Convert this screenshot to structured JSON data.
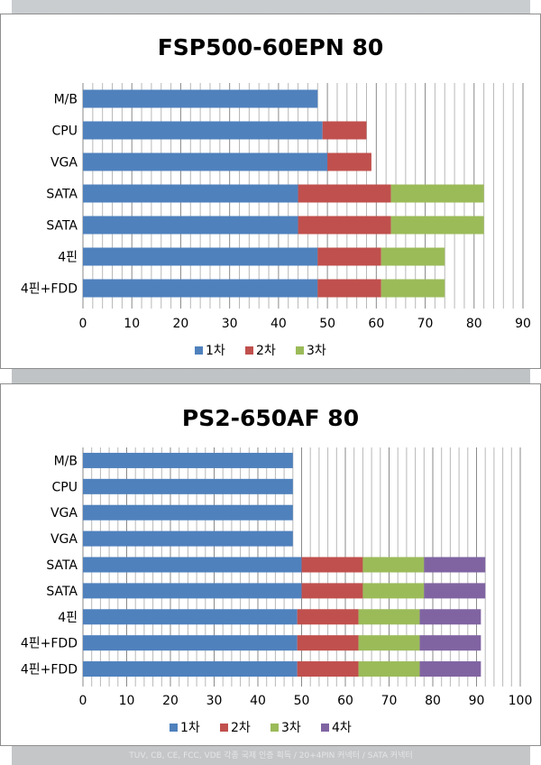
{
  "background_caption": "TUV, CB, CE, FCC, VDE 각종 국제 인증 획득 / 20+4PIN 커넥터 / SATA 커넥터",
  "chart_data": [
    {
      "type": "bar",
      "orientation": "horizontal",
      "stacked": true,
      "title": "FSP500-60EPN 80",
      "categories": [
        "M/B",
        "CPU",
        "VGA",
        "SATA",
        "SATA",
        "4핀",
        "4핀+FDD"
      ],
      "xlim": [
        0,
        90
      ],
      "xticks": [
        "0",
        "10",
        "20",
        "30",
        "40",
        "50",
        "60",
        "70",
        "80",
        "90"
      ],
      "minor_gridline_step": 2,
      "grid": true,
      "legend_position": "bottom",
      "series": [
        {
          "name": "1차",
          "color": "#4f81bd",
          "values": [
            48,
            49,
            50,
            44,
            44,
            48,
            48
          ]
        },
        {
          "name": "2차",
          "color": "#c0504d",
          "values": [
            0,
            9,
            9,
            19,
            19,
            13,
            13
          ]
        },
        {
          "name": "3차",
          "color": "#9bbb59",
          "values": [
            0,
            0,
            0,
            19,
            19,
            13,
            13
          ]
        }
      ]
    },
    {
      "type": "bar",
      "orientation": "horizontal",
      "stacked": true,
      "title": "PS2-650AF 80",
      "categories": [
        "M/B",
        "CPU",
        "VGA",
        "VGA",
        "SATA",
        "SATA",
        "4핀",
        "4핀+FDD",
        "4핀+FDD"
      ],
      "xlim": [
        0,
        100
      ],
      "xticks": [
        "0",
        "10",
        "20",
        "30",
        "40",
        "50",
        "60",
        "70",
        "80",
        "90",
        "100"
      ],
      "minor_gridline_step": 2,
      "grid": true,
      "legend_position": "bottom",
      "series": [
        {
          "name": "1차",
          "color": "#4f81bd",
          "values": [
            48,
            48,
            48,
            48,
            50,
            50,
            49,
            49,
            49
          ]
        },
        {
          "name": "2차",
          "color": "#c0504d",
          "values": [
            0,
            0,
            0,
            0,
            14,
            14,
            14,
            14,
            14
          ]
        },
        {
          "name": "3차",
          "color": "#9bbb59",
          "values": [
            0,
            0,
            0,
            0,
            14,
            14,
            14,
            14,
            14
          ]
        },
        {
          "name": "4차",
          "color": "#8064a2",
          "values": [
            0,
            0,
            0,
            0,
            14,
            14,
            14,
            14,
            14
          ]
        }
      ]
    }
  ]
}
